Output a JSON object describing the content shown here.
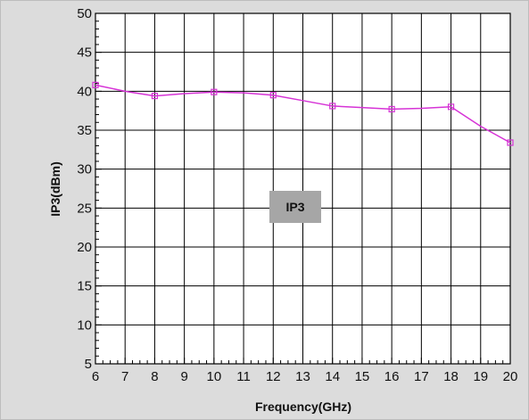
{
  "chart_data": {
    "type": "line",
    "title": "",
    "xlabel": "Frequency(GHz)",
    "ylabel": "IP3(dBm)",
    "xlim": [
      6,
      20
    ],
    "ylim": [
      5,
      50
    ],
    "x_ticks": [
      6,
      7,
      8,
      9,
      10,
      11,
      12,
      13,
      14,
      15,
      16,
      17,
      18,
      19,
      20
    ],
    "y_ticks": [
      5,
      10,
      15,
      20,
      25,
      30,
      35,
      40,
      45,
      50
    ],
    "grid": true,
    "annotation": "IP3",
    "colors": {
      "series": "#d633d6",
      "grid": "#000000",
      "plot_bg": "#ffffff",
      "frame_bg": "#dcdcdc",
      "annotation_bg": "#a6a6a6"
    },
    "series": [
      {
        "x": [
          6,
          7,
          8,
          9,
          10,
          11,
          12,
          13,
          14,
          15,
          16,
          17,
          18,
          19,
          20
        ],
        "y": [
          40.8,
          40.0,
          39.4,
          39.7,
          39.9,
          39.8,
          39.5,
          38.8,
          38.1,
          37.9,
          37.7,
          37.8,
          38.0,
          35.5,
          33.4
        ],
        "marker_x": [
          6,
          8,
          10,
          12,
          14,
          16,
          18,
          20
        ]
      }
    ]
  }
}
